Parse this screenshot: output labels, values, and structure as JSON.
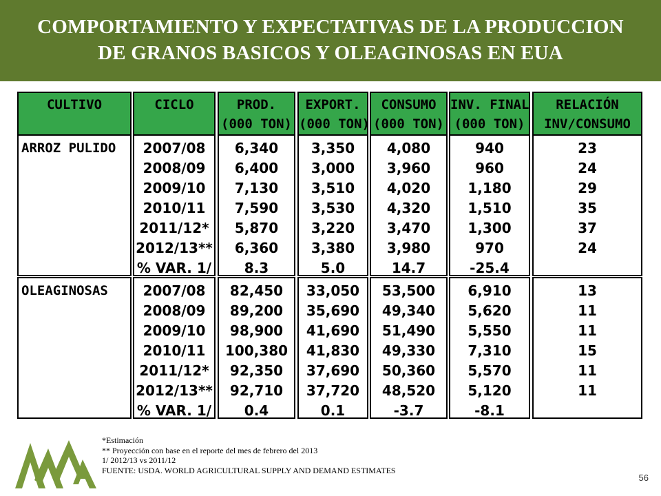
{
  "title": {
    "line1": "COMPORTAMIENTO Y EXPECTATIVAS DE LA PRODUCCION",
    "line2": "DE GRANOS BASICOS Y OLEAGINOSAS EN EUA"
  },
  "table": {
    "headers": [
      {
        "line1": "CULTIVO",
        "line2": ""
      },
      {
        "line1": "CICLO",
        "line2": ""
      },
      {
        "line1": "PROD.",
        "line2": "(000 TON)"
      },
      {
        "line1": "EXPORT.",
        "line2": "(000 TON)"
      },
      {
        "line1": "CONSUMO",
        "line2": "(000 TON)"
      },
      {
        "line1": "INV. FINAL",
        "line2": "(000 TON)"
      },
      {
        "line1": "RELACIÓN",
        "line2": "INV/CONSUMO"
      }
    ],
    "groups": [
      {
        "crop": "ARROZ PULIDO",
        "rows": [
          [
            "2007/08",
            "6,340",
            "3,350",
            "4,080",
            "940",
            "23"
          ],
          [
            "2008/09",
            "6,400",
            "3,000",
            "3,960",
            "960",
            "24"
          ],
          [
            "2009/10",
            "7,130",
            "3,510",
            "4,020",
            "1,180",
            "29"
          ],
          [
            "2010/11",
            "7,590",
            "3,530",
            "4,320",
            "1,510",
            "35"
          ],
          [
            "2011/12*",
            "5,870",
            "3,220",
            "3,470",
            "1,300",
            "37"
          ],
          [
            "2012/13**",
            "6,360",
            "3,380",
            "3,980",
            "970",
            "24"
          ],
          [
            "% VAR. 1/",
            "8.3",
            "5.0",
            "14.7",
            "-25.4",
            ""
          ]
        ]
      },
      {
        "crop": "OLEAGINOSAS",
        "rows": [
          [
            "2007/08",
            "82,450",
            "33,050",
            "53,500",
            "6,910",
            "13"
          ],
          [
            "2008/09",
            "89,200",
            "35,690",
            "49,340",
            "5,620",
            "11"
          ],
          [
            "2009/10",
            "98,900",
            "41,690",
            "51,490",
            "5,550",
            "11"
          ],
          [
            "2010/11",
            "100,380",
            "41,830",
            "49,330",
            "7,310",
            "15"
          ],
          [
            "2011/12*",
            "92,350",
            "37,690",
            "50,360",
            "5,570",
            "11"
          ],
          [
            "2012/13**",
            "92,710",
            "37,720",
            "48,520",
            "5,120",
            "11"
          ],
          [
            "% VAR. 1/",
            "0.4",
            "0.1",
            "-3.7",
            "-8.1",
            ""
          ]
        ]
      }
    ]
  },
  "notes": [
    "*Estimación",
    "** Proyección con base en el reporte  del mes de febrero del 2013",
    "1/ 2012/13 vs 2011/12",
    "FUENTE: USDA. WORLD AGRICULTURAL SUPPLY AND DEMAND ESTIMATES"
  ],
  "page_number": "56",
  "colors": {
    "header_band": "#5f7a2e",
    "table_header": "#35a64a",
    "logo": "#7a9a3c"
  },
  "logo_icon": "mountains-logo-icon"
}
